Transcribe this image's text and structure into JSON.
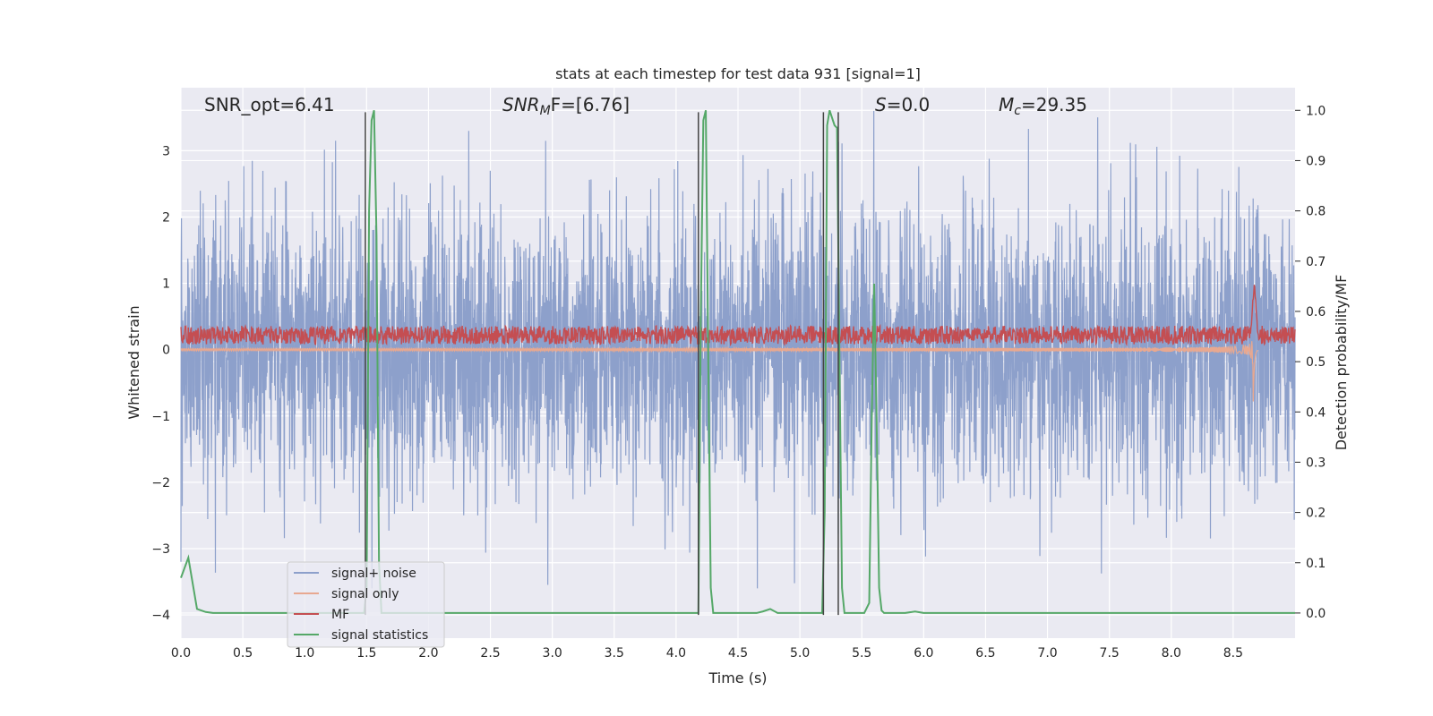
{
  "chart_data": {
    "type": "line",
    "title": "stats at each timestep for test data 931 [signal=1]",
    "xlabel": "Time (s)",
    "ylabel": "Whitened strain",
    "ylabel_right": "Detection probability/MF",
    "xlim": [
      0.0,
      9.0
    ],
    "ylim": [
      -4.35,
      3.95
    ],
    "ylim_right": [
      -0.05,
      1.045
    ],
    "x_ticks": [
      0.0,
      0.5,
      1.0,
      1.5,
      2.0,
      2.5,
      3.0,
      3.5,
      4.0,
      4.5,
      5.0,
      5.5,
      6.0,
      6.5,
      7.0,
      7.5,
      8.0,
      8.5
    ],
    "x_tick_labels": [
      "0.0",
      "0.5",
      "1.0",
      "1.5",
      "2.0",
      "2.5",
      "3.0",
      "3.5",
      "4.0",
      "4.5",
      "5.0",
      "5.5",
      "6.0",
      "6.5",
      "7.0",
      "7.5",
      "8.0",
      "8.5"
    ],
    "y_ticks": [
      -4,
      -3,
      -2,
      -1,
      0,
      1,
      2,
      3
    ],
    "y_tick_labels": [
      "−4",
      "−3",
      "−2",
      "−1",
      "0",
      "1",
      "2",
      "3"
    ],
    "y_right_ticks": [
      0.0,
      0.1,
      0.2,
      0.3,
      0.4,
      0.5,
      0.6,
      0.7,
      0.8,
      0.9,
      1.0
    ],
    "y_right_tick_labels": [
      "0.0",
      "0.1",
      "0.2",
      "0.3",
      "0.4",
      "0.5",
      "0.6",
      "0.7",
      "0.8",
      "0.9",
      "1.0"
    ],
    "annotations": [
      {
        "text": "SNR_opt=6.41",
        "x": 0.2,
        "y": 3.5
      },
      {
        "text": "SNRMF=[6.76]",
        "main": "SNR",
        "sub": "M",
        "rest": "F=[6.76]",
        "x": 2.6,
        "y": 3.5
      },
      {
        "text": "S=0.0",
        "main": "S",
        "rest": "=0.0",
        "x": 5.6,
        "y": 3.5
      },
      {
        "text": "Mc=29.35",
        "main": "M",
        "sub": "c",
        "rest": "=29.35",
        "x": 6.6,
        "y": 3.5
      }
    ],
    "vlines": [
      {
        "x": 1.49,
        "ymin": -4.0,
        "ymax": 3.58
      },
      {
        "x": 4.18,
        "ymin": -4.0,
        "ymax": 3.58
      },
      {
        "x": 5.19,
        "ymin": -4.0,
        "ymax": 3.58
      },
      {
        "x": 5.31,
        "ymin": -4.0,
        "ymax": 3.58
      }
    ],
    "series": [
      {
        "name": "signal+ noise",
        "color": "#8da0cb",
        "axis": "left",
        "style": "noise",
        "x_range": [
          0.0,
          9.0
        ],
        "noise_amplitude": 1.0,
        "peak_max": 3.6,
        "peak_min": -3.6
      },
      {
        "name": "signal only",
        "color": "#e8a890",
        "axis": "left",
        "style": "chirp",
        "x_range": [
          0.0,
          8.7
        ],
        "merger_x": 8.66,
        "peak_amplitude": 1.35
      },
      {
        "name": "MF",
        "color": "#c44e52",
        "axis": "left",
        "style": "mf",
        "x_range": [
          0.0,
          9.0
        ],
        "baseline": 0.22,
        "spread": 0.14,
        "peak_x": 8.67,
        "peak_y": 1.0
      },
      {
        "name": "signal statistics",
        "color": "#55a868",
        "axis": "right",
        "style": "line",
        "x": [
          0.0,
          0.06,
          0.13,
          0.2,
          0.26,
          1.48,
          1.5,
          1.52,
          1.54,
          1.56,
          1.58,
          1.6,
          1.62,
          1.64,
          4.18,
          4.2,
          4.22,
          4.24,
          4.26,
          4.28,
          4.3,
          4.32,
          4.65,
          4.7,
          4.76,
          4.82,
          5.18,
          5.2,
          5.22,
          5.24,
          5.26,
          5.28,
          5.3,
          5.32,
          5.34,
          5.36,
          5.52,
          5.56,
          5.58,
          5.6,
          5.62,
          5.64,
          5.66,
          5.68,
          5.85,
          5.93,
          6.0,
          9.0
        ],
        "y": [
          0.07,
          0.11,
          0.008,
          0.002,
          0.0,
          0.0,
          0.05,
          0.8,
          0.98,
          1.0,
          0.75,
          0.1,
          0.0,
          0.0,
          0.0,
          0.6,
          0.98,
          1.0,
          0.5,
          0.05,
          0.0,
          0.0,
          0.0,
          0.003,
          0.008,
          0.0,
          0.0,
          0.2,
          0.97,
          1.0,
          0.985,
          0.97,
          0.965,
          0.5,
          0.05,
          0.0,
          0.0,
          0.02,
          0.38,
          0.655,
          0.38,
          0.05,
          0.005,
          0.0,
          0.0,
          0.003,
          0.0,
          0.0
        ]
      }
    ],
    "legend_position": "lower-left",
    "grid": true
  }
}
